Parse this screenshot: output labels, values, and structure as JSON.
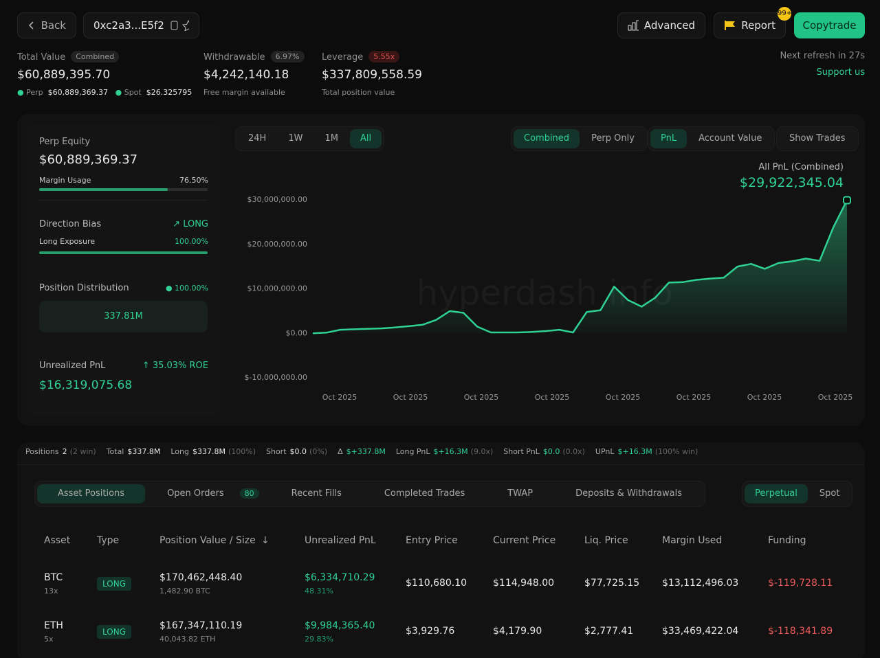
{
  "header": {
    "back": "Back",
    "address": "0xc2a3...E5f2",
    "advanced": "Advanced",
    "report": "Report",
    "badge": "99+",
    "copytrade": "Copytrade"
  },
  "summary": {
    "total_value": {
      "label": "Total Value",
      "tag": "Combined",
      "value": "$60,889,395.70",
      "perp_label": "Perp",
      "perp_value": "$60,889,369.37",
      "spot_label": "Spot",
      "spot_value": "$26.325795"
    },
    "withdrawable": {
      "label": "Withdrawable",
      "tag": "6.97%",
      "value": "$4,242,140.18",
      "note": "Free margin available"
    },
    "leverage": {
      "label": "Leverage",
      "tag": "5.55x",
      "value": "$337,809,558.59",
      "note": "Total position value"
    },
    "refresh": "Next refresh in 27s",
    "support": "Support us"
  },
  "side": {
    "perp_equity_label": "Perp Equity",
    "perp_equity": "$60,889,369.37",
    "margin_usage_label": "Margin Usage",
    "margin_usage": "76.50%",
    "direction_label": "Direction Bias",
    "direction": "LONG",
    "long_exposure_label": "Long Exposure",
    "long_exposure": "100.00%",
    "distribution_label": "Position Distribution",
    "distribution_pct": "100.00%",
    "distribution_value": "337.81M",
    "upnl_label": "Unrealized PnL",
    "roe": "35.03% ROE",
    "upnl": "$16,319,075.68"
  },
  "chart_controls": {
    "ranges": [
      "24H",
      "1W",
      "1M",
      "All"
    ],
    "modes": [
      "Combined",
      "Perp Only"
    ],
    "metrics": [
      "PnL",
      "Account Value"
    ],
    "show_trades": "Show Trades"
  },
  "chart_data": {
    "type": "line",
    "label": "All PnL (Combined)",
    "value_label": "$29,922,345.04",
    "watermark": "hyperdash.info",
    "color": "#2fd195",
    "xtick_labels": [
      "Oct 2025",
      "Oct 2025",
      "Oct 2025",
      "Oct 2025",
      "Oct 2025",
      "Oct 2025",
      "Oct 2025",
      "Oct 2025"
    ],
    "ylim": [
      -10000000,
      30000000
    ],
    "yticks": [
      {
        "value": 30000000,
        "label": "$30,000,000.00"
      },
      {
        "value": 20000000,
        "label": "$20,000,000.00"
      },
      {
        "value": 10000000,
        "label": "$10,000,000.00"
      },
      {
        "value": 0,
        "label": "$0.00"
      },
      {
        "value": -10000000,
        "label": "$-10,000,000.00"
      }
    ],
    "values": [
      0,
      150000,
      800000,
      900000,
      1000000,
      1100000,
      1300000,
      1600000,
      1900000,
      3000000,
      5000000,
      4600000,
      1500000,
      200000,
      200000,
      200000,
      300000,
      500000,
      800000,
      200000,
      4800000,
      5200000,
      10500000,
      7500000,
      6000000,
      8000000,
      11400000,
      11500000,
      12000000,
      12300000,
      12500000,
      15000000,
      15600000,
      14500000,
      15800000,
      16200000,
      16800000,
      16300000,
      23800000,
      29922345.04
    ]
  },
  "stats": [
    {
      "label": "Positions",
      "value": "2",
      "note": "(2 win)"
    },
    {
      "label": "Total",
      "value": "$337.8M"
    },
    {
      "label": "Long",
      "value": "$337.8M",
      "note": "(100%)"
    },
    {
      "label": "Short",
      "value": "$0.0",
      "note": "(0%)"
    },
    {
      "label": "Δ",
      "value": "$+337.8M",
      "tone": "positive"
    },
    {
      "label": "Long PnL",
      "value": "$+16.3M",
      "note": "(9.0x)",
      "tone": "positive"
    },
    {
      "label": "Short PnL",
      "value": "$0.0",
      "note": "(0.0x)",
      "tone": "positive"
    },
    {
      "label": "UPnL",
      "value": "$+16.3M",
      "note": "(100% win)",
      "tone": "positive"
    }
  ],
  "tabs": [
    {
      "label": "Asset Positions"
    },
    {
      "label": "Open Orders",
      "badge": "80"
    },
    {
      "label": "Recent Fills"
    },
    {
      "label": "Completed Trades"
    },
    {
      "label": "TWAP"
    },
    {
      "label": "Deposits & Withdrawals"
    }
  ],
  "market_toggle": [
    "Perpetual",
    "Spot"
  ],
  "table": {
    "columns": [
      "Asset",
      "Type",
      "Position Value / Size",
      "Unrealized PnL",
      "Entry Price",
      "Current Price",
      "Liq. Price",
      "Margin Used",
      "Funding"
    ],
    "rows": [
      {
        "asset": "BTC",
        "lev": "13x",
        "type": "LONG",
        "value": "$170,462,448.40",
        "size": "1,482.90 BTC",
        "upnl": "$6,334,710.29",
        "upnl_pct": "48.31%",
        "entry": "$110,680.10",
        "current": "$114,948.00",
        "liq": "$77,725.15",
        "margin": "$13,112,496.03",
        "funding": "$-119,728.11"
      },
      {
        "asset": "ETH",
        "lev": "5x",
        "type": "LONG",
        "value": "$167,347,110.19",
        "size": "40,043.82 ETH",
        "upnl": "$9,984,365.40",
        "upnl_pct": "29.83%",
        "entry": "$3,929.76",
        "current": "$4,179.90",
        "liq": "$2,777.41",
        "margin": "$33,469,422.04",
        "funding": "$-118,341.89"
      }
    ]
  }
}
